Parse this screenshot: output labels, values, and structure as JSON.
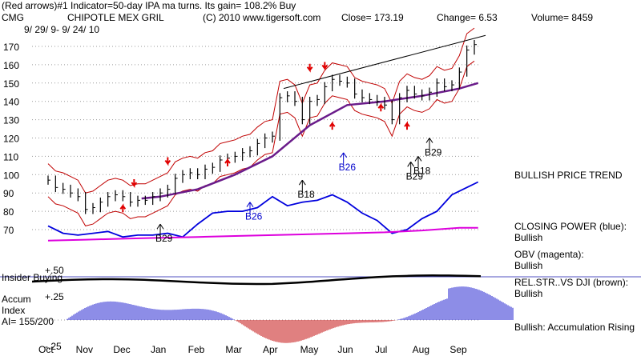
{
  "header": {
    "indicator_line": "(Red arrows)#1 Indicator=50-day IPA ma turns. Its gain= 108.2% Buy",
    "symbol": "CMG",
    "company": "CHIPOTLE MEX GRIL",
    "copyright": "(C) 2010 www.tigersoft.com",
    "close": "Close=  173.19",
    "change": "Change= 6.53",
    "volume": "Volume= 8459",
    "date_range": "9/ 29/ 9- 9/ 24/ 10"
  },
  "side_labels": {
    "trend": "BULLISH PRICE TREND",
    "closing_power": "CLOSING POWER (blue):",
    "closing_power_val": "Bullish",
    "obv": "OBV (magenta):",
    "obv_val": "Bullish",
    "relstr": "REL.STR..VS DJI (brown):",
    "relstr_val": "Bullish",
    "accum": "Bullish: Accumulation Rising"
  },
  "lower_panel": {
    "insider": "Insider Buying",
    "plus50": "+.50",
    "plus25": "+.25",
    "minus25": "-.25",
    "accum_label": "Accum",
    "index_label": "Index",
    "ai_label": "AI= 155/200"
  },
  "chart_data": {
    "type": "line",
    "title": "CHIPOTLE MEX GRIL",
    "ylim": [
      63,
      178
    ],
    "y_ticks": [
      170,
      160,
      150,
      140,
      130,
      120,
      110,
      100,
      90,
      80,
      70
    ],
    "months": [
      "Oct",
      "Nov",
      "Dec",
      "Jan",
      "Feb",
      "Mar",
      "Apr",
      "May",
      "Jun",
      "Jul",
      "Aug",
      "Sep"
    ],
    "price": {
      "name": "Close",
      "x": [
        0,
        0.2,
        0.4,
        0.6,
        0.8,
        1.0,
        1.2,
        1.4,
        1.6,
        1.8,
        2.0,
        2.2,
        2.4,
        2.6,
        2.8,
        3.0,
        3.2,
        3.4,
        3.6,
        3.8,
        4.0,
        4.2,
        4.4,
        4.6,
        4.8,
        5.0,
        5.2,
        5.4,
        5.6,
        5.8,
        6.0,
        6.2,
        6.4,
        6.6,
        6.8,
        7.0,
        7.2,
        7.4,
        7.6,
        7.8,
        8.0,
        8.2,
        8.4,
        8.6,
        8.8,
        9.0,
        9.2,
        9.4,
        9.6,
        9.8,
        10.0,
        10.2,
        10.4,
        10.6,
        10.8,
        11.0,
        11.2,
        11.4
      ],
      "values": [
        97,
        93,
        92,
        90,
        88,
        81,
        82,
        85,
        88,
        89,
        88,
        85,
        86,
        86,
        88,
        90,
        92,
        98,
        100,
        101,
        100,
        103,
        104,
        108,
        109,
        110,
        112,
        113,
        117,
        120,
        121,
        142,
        143,
        140,
        130,
        140,
        141,
        148,
        152,
        151,
        150,
        144,
        142,
        141,
        140,
        138,
        130,
        142,
        146,
        144,
        143,
        145,
        150,
        148,
        149,
        156,
        168,
        171
      ]
    },
    "closing_power": {
      "name": "CLOSING POWER",
      "x": [
        0,
        0.4,
        0.8,
        1.2,
        1.6,
        2.0,
        2.4,
        2.8,
        3.2,
        3.6,
        4.0,
        4.4,
        4.8,
        5.2,
        5.6,
        6.0,
        6.4,
        6.8,
        7.2,
        7.6,
        8.0,
        8.4,
        8.8,
        9.2,
        9.6,
        10.0,
        10.4,
        10.8,
        11.2,
        11.5
      ],
      "values": [
        72,
        68,
        67,
        68,
        69,
        66,
        67,
        67,
        68,
        66,
        73,
        79,
        80,
        80,
        82,
        88,
        83,
        85,
        86,
        89,
        85,
        79,
        75,
        68,
        70,
        76,
        80,
        89,
        93,
        96
      ]
    },
    "obv": {
      "name": "OBV",
      "x": [
        0,
        1,
        2,
        3,
        4,
        5,
        6,
        7,
        8,
        9,
        10,
        11,
        11.5
      ],
      "values": [
        64,
        64.5,
        65,
        65.5,
        66,
        66.5,
        67,
        67.5,
        68,
        68.5,
        69.5,
        71,
        71
      ]
    },
    "ma50": {
      "name": "50-day MA",
      "x": [
        2.5,
        3,
        4,
        5,
        6,
        7,
        8,
        9,
        10,
        11,
        11.5
      ],
      "values": [
        87,
        88,
        92,
        100,
        110,
        127,
        138,
        140,
        143,
        147,
        150
      ]
    },
    "buy_signals": [
      "B26",
      "B18",
      "B26",
      "B29",
      "B18",
      "B29",
      "B29"
    ]
  }
}
